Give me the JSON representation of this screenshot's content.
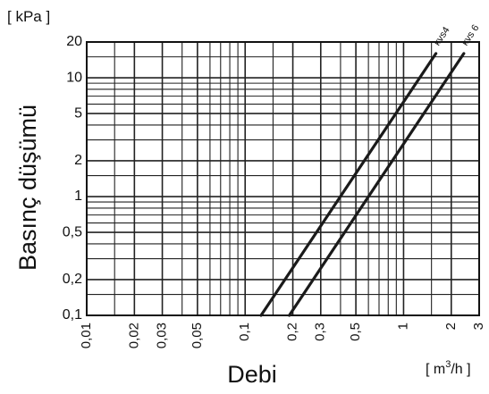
{
  "chart_data": {
    "type": "line",
    "y_unit": "[ kPa ]",
    "ylabel": "Basınç düşümü",
    "xlabel": "Debi",
    "x_unit": "[ m³/h ]",
    "x_unit_base": "[ m",
    "x_unit_sup": "3",
    "x_unit_tail": "/h ]",
    "x_scale": "log",
    "y_scale": "log",
    "xlim": [
      0.01,
      3
    ],
    "ylim": [
      0.1,
      20
    ],
    "grid": true,
    "x_ticks": [
      {
        "value": 0.01,
        "label": "0,01"
      },
      {
        "value": 0.02,
        "label": "0,02"
      },
      {
        "value": 0.03,
        "label": "0,03"
      },
      {
        "value": 0.05,
        "label": "0,05"
      },
      {
        "value": 0.1,
        "label": "0,1"
      },
      {
        "value": 0.2,
        "label": "0,2"
      },
      {
        "value": 0.3,
        "label": "0,3"
      },
      {
        "value": 0.5,
        "label": "0,5"
      },
      {
        "value": 1,
        "label": "1"
      },
      {
        "value": 2,
        "label": "2"
      },
      {
        "value": 3,
        "label": "3"
      }
    ],
    "y_ticks": [
      {
        "value": 0.1,
        "label": "0,1"
      },
      {
        "value": 0.2,
        "label": "0,2"
      },
      {
        "value": 0.5,
        "label": "0,5"
      },
      {
        "value": 1,
        "label": "1"
      },
      {
        "value": 2,
        "label": "2"
      },
      {
        "value": 5,
        "label": "5"
      },
      {
        "value": 10,
        "label": "10"
      },
      {
        "value": 20,
        "label": "20"
      }
    ],
    "x_grid": [
      0.01,
      0.015,
      0.02,
      0.03,
      0.04,
      0.05,
      0.06,
      0.07,
      0.08,
      0.09,
      0.1,
      0.15,
      0.2,
      0.3,
      0.4,
      0.5,
      0.6,
      0.7,
      0.8,
      0.9,
      1,
      1.5,
      2,
      3
    ],
    "y_grid": [
      0.1,
      0.15,
      0.2,
      0.3,
      0.4,
      0.5,
      0.6,
      0.7,
      0.8,
      0.9,
      1,
      1.5,
      2,
      3,
      4,
      5,
      6,
      7,
      8,
      9,
      10,
      15,
      20
    ],
    "series": [
      {
        "name": "kvs4",
        "x": [
          0.126,
          1.6
        ],
        "y": [
          0.1,
          16
        ],
        "color": "#1a1a1a"
      },
      {
        "name": "kvs 6",
        "x": [
          0.19,
          2.4
        ],
        "y": [
          0.1,
          16
        ],
        "color": "#1a1a1a"
      }
    ]
  }
}
